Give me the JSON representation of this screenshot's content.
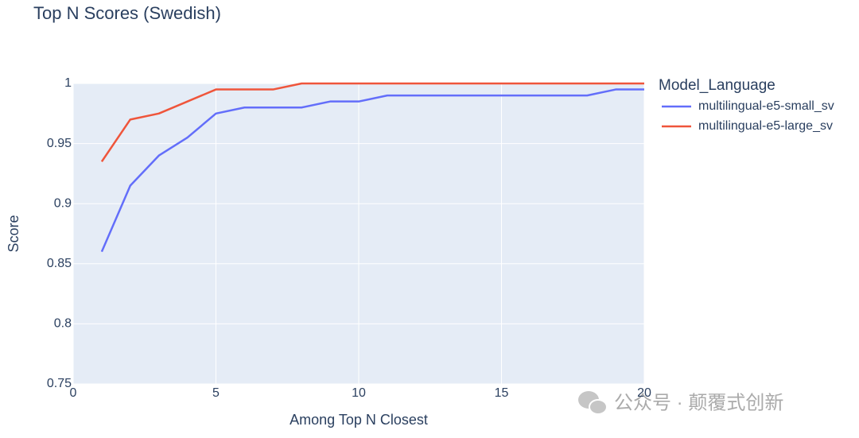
{
  "chart_data": {
    "type": "line",
    "title": "Top N Scores (Swedish)",
    "x_label": "Among Top N Closest",
    "y_label": "Score",
    "legend_title": "Model_Language",
    "x": [
      1,
      2,
      3,
      4,
      5,
      6,
      7,
      8,
      9,
      10,
      11,
      12,
      13,
      14,
      15,
      16,
      17,
      18,
      19,
      20
    ],
    "series": [
      {
        "name": "multilingual-e5-small_sv",
        "color": "#636efa",
        "values": [
          0.86,
          0.915,
          0.94,
          0.955,
          0.975,
          0.98,
          0.98,
          0.98,
          0.985,
          0.985,
          0.99,
          0.99,
          0.99,
          0.99,
          0.99,
          0.99,
          0.99,
          0.99,
          0.995,
          0.995
        ]
      },
      {
        "name": "multilingual-e5-large_sv",
        "color": "#ef553b",
        "values": [
          0.935,
          0.97,
          0.975,
          0.985,
          0.995,
          0.995,
          0.995,
          1,
          1,
          1,
          1,
          1,
          1,
          1,
          1,
          1,
          1,
          1,
          1,
          1
        ]
      }
    ],
    "xlim": [
      0,
      20
    ],
    "xticks": [
      0,
      5,
      10,
      15,
      20
    ],
    "ylim": [
      0.75,
      1
    ],
    "yticks": [
      0.75,
      0.8,
      0.85,
      0.9,
      0.95,
      1
    ],
    "grid": true,
    "legend_position": "right",
    "watermark": "公众号 · 颠覆式创新"
  }
}
